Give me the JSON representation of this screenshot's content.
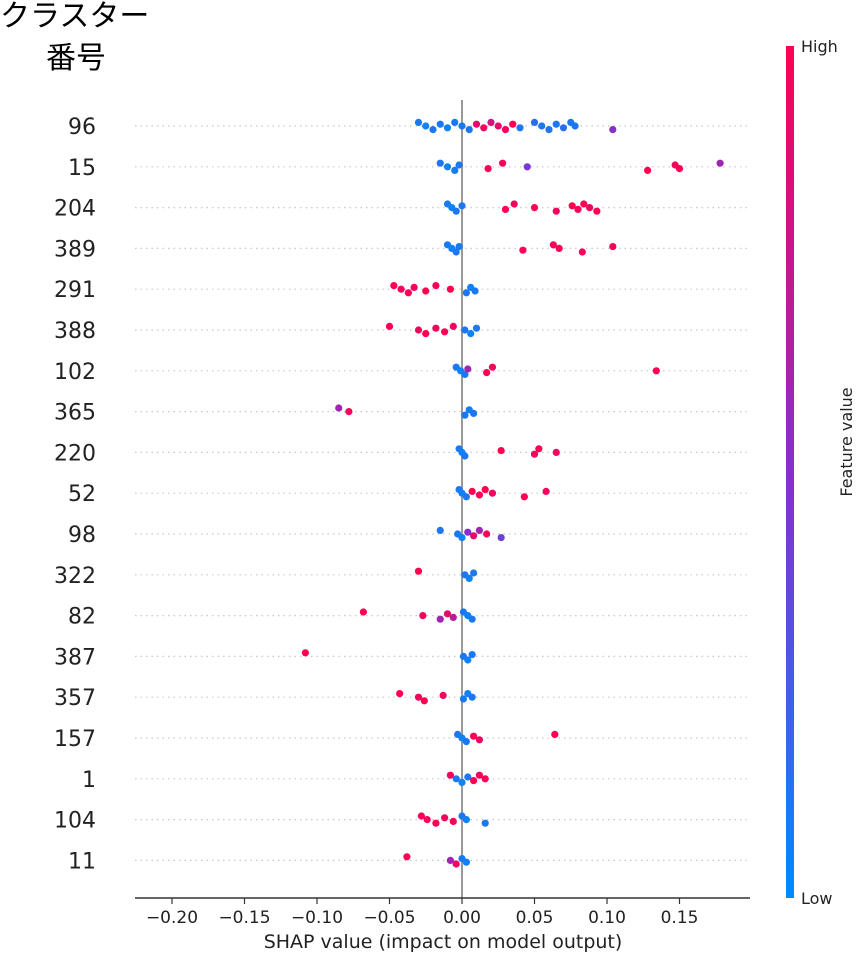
{
  "chart_data": {
    "type": "scatter",
    "subtype": "shap-beeswarm",
    "ylabel_line1": "クラスター",
    "ylabel_line2": "番号",
    "xlabel": "SHAP value (impact on model output)",
    "xlim": [
      -0.22,
      0.2
    ],
    "xticks": [
      -0.2,
      -0.15,
      -0.1,
      -0.05,
      0.0,
      0.05,
      0.1,
      0.15
    ],
    "xtick_labels": [
      "−0.20",
      "−0.15",
      "−0.10",
      "−0.05",
      "0.00",
      "0.05",
      "0.10",
      "0.15"
    ],
    "colorbar": {
      "label": "Feature value",
      "high": "High",
      "low": "Low",
      "high_color": "#ff0052",
      "low_color": "#008bfb"
    },
    "grid": "dotted-horizontal",
    "features": [
      {
        "name": "96",
        "points": [
          [
            -0.03,
            0.1
          ],
          [
            -0.025,
            0.05
          ],
          [
            -0.02,
            0.1
          ],
          [
            -0.015,
            0.1
          ],
          [
            -0.01,
            0.05
          ],
          [
            -0.005,
            0.1
          ],
          [
            0.0,
            0.1
          ],
          [
            0.005,
            0.1
          ],
          [
            0.01,
            0.9
          ],
          [
            0.015,
            0.95
          ],
          [
            0.02,
            0.8
          ],
          [
            0.025,
            0.9
          ],
          [
            0.03,
            0.95
          ],
          [
            0.035,
            1.0
          ],
          [
            0.04,
            0.1
          ],
          [
            0.05,
            0.15
          ],
          [
            0.055,
            0.1
          ],
          [
            0.06,
            0.1
          ],
          [
            0.065,
            0.1
          ],
          [
            0.07,
            0.15
          ],
          [
            0.075,
            0.1
          ],
          [
            0.078,
            0.1
          ],
          [
            0.104,
            0.5
          ]
        ]
      },
      {
        "name": "15",
        "points": [
          [
            -0.015,
            0.1
          ],
          [
            -0.01,
            0.05
          ],
          [
            -0.005,
            0.1
          ],
          [
            -0.002,
            0.1
          ],
          [
            0.018,
            1.0
          ],
          [
            0.028,
            0.95
          ],
          [
            0.045,
            0.45
          ],
          [
            0.128,
            1.0
          ],
          [
            0.147,
            0.95
          ],
          [
            0.15,
            1.0
          ],
          [
            0.178,
            0.6
          ]
        ]
      },
      {
        "name": "204",
        "points": [
          [
            -0.01,
            0.1
          ],
          [
            -0.007,
            0.05
          ],
          [
            -0.004,
            0.1
          ],
          [
            0.0,
            0.1
          ],
          [
            0.03,
            1.0
          ],
          [
            0.036,
            0.95
          ],
          [
            0.05,
            1.0
          ],
          [
            0.065,
            0.95
          ],
          [
            0.076,
            1.0
          ],
          [
            0.08,
            0.95
          ],
          [
            0.084,
            1.0
          ],
          [
            0.088,
            0.95
          ],
          [
            0.093,
            1.0
          ]
        ]
      },
      {
        "name": "389",
        "points": [
          [
            -0.01,
            0.1
          ],
          [
            -0.007,
            0.05
          ],
          [
            -0.004,
            0.1
          ],
          [
            -0.002,
            0.1
          ],
          [
            0.042,
            1.0
          ],
          [
            0.063,
            0.95
          ],
          [
            0.067,
            1.0
          ],
          [
            0.083,
            0.95
          ],
          [
            0.104,
            1.0
          ]
        ]
      },
      {
        "name": "291",
        "points": [
          [
            -0.047,
            1.0
          ],
          [
            -0.042,
            0.95
          ],
          [
            -0.037,
            1.0
          ],
          [
            -0.033,
            0.95
          ],
          [
            -0.025,
            1.0
          ],
          [
            -0.018,
            0.95
          ],
          [
            -0.008,
            1.0
          ],
          [
            0.003,
            0.1
          ],
          [
            0.006,
            0.05
          ],
          [
            0.009,
            0.1
          ]
        ]
      },
      {
        "name": "388",
        "points": [
          [
            -0.05,
            1.0
          ],
          [
            -0.03,
            0.95
          ],
          [
            -0.025,
            1.0
          ],
          [
            -0.018,
            0.95
          ],
          [
            -0.012,
            1.0
          ],
          [
            -0.006,
            0.95
          ],
          [
            0.002,
            0.1
          ],
          [
            0.006,
            0.05
          ],
          [
            0.01,
            0.1
          ]
        ]
      },
      {
        "name": "102",
        "points": [
          [
            -0.004,
            0.1
          ],
          [
            -0.001,
            0.05
          ],
          [
            0.002,
            0.1
          ],
          [
            0.004,
            0.6
          ],
          [
            0.017,
            1.0
          ],
          [
            0.021,
            0.95
          ],
          [
            0.134,
            1.0
          ]
        ]
      },
      {
        "name": "365",
        "points": [
          [
            -0.085,
            0.6
          ],
          [
            -0.078,
            0.95
          ],
          [
            0.002,
            0.1
          ],
          [
            0.005,
            0.05
          ],
          [
            0.008,
            0.1
          ]
        ]
      },
      {
        "name": "220",
        "points": [
          [
            -0.002,
            0.1
          ],
          [
            0.0,
            0.05
          ],
          [
            0.002,
            0.1
          ],
          [
            0.027,
            1.0
          ],
          [
            0.05,
            0.95
          ],
          [
            0.053,
            1.0
          ],
          [
            0.065,
            0.95
          ]
        ]
      },
      {
        "name": "52",
        "points": [
          [
            -0.002,
            0.1
          ],
          [
            0.0,
            0.05
          ],
          [
            0.003,
            0.1
          ],
          [
            0.007,
            1.0
          ],
          [
            0.012,
            0.95
          ],
          [
            0.016,
            1.0
          ],
          [
            0.021,
            0.95
          ],
          [
            0.043,
            1.0
          ],
          [
            0.058,
            0.95
          ]
        ]
      },
      {
        "name": "98",
        "points": [
          [
            -0.015,
            0.1
          ],
          [
            -0.003,
            0.1
          ],
          [
            0.0,
            0.05
          ],
          [
            0.004,
            0.5
          ],
          [
            0.008,
            0.9
          ],
          [
            0.012,
            0.6
          ],
          [
            0.017,
            0.95
          ],
          [
            0.027,
            0.4
          ]
        ]
      },
      {
        "name": "322",
        "points": [
          [
            -0.03,
            1.0
          ],
          [
            0.002,
            0.1
          ],
          [
            0.005,
            0.05
          ],
          [
            0.008,
            0.1
          ]
        ]
      },
      {
        "name": "82",
        "points": [
          [
            -0.068,
            1.0
          ],
          [
            -0.027,
            0.95
          ],
          [
            -0.015,
            0.6
          ],
          [
            -0.01,
            0.9
          ],
          [
            -0.006,
            0.7
          ],
          [
            0.001,
            0.1
          ],
          [
            0.004,
            0.05
          ],
          [
            0.007,
            0.1
          ]
        ]
      },
      {
        "name": "387",
        "points": [
          [
            -0.108,
            1.0
          ],
          [
            0.001,
            0.1
          ],
          [
            0.004,
            0.05
          ],
          [
            0.007,
            0.1
          ]
        ]
      },
      {
        "name": "357",
        "points": [
          [
            -0.043,
            1.0
          ],
          [
            -0.03,
            0.95
          ],
          [
            -0.026,
            1.0
          ],
          [
            -0.013,
            0.95
          ],
          [
            0.001,
            0.1
          ],
          [
            0.004,
            0.05
          ],
          [
            0.007,
            0.1
          ]
        ]
      },
      {
        "name": "157",
        "points": [
          [
            -0.003,
            0.1
          ],
          [
            0.0,
            0.05
          ],
          [
            0.003,
            0.1
          ],
          [
            0.008,
            1.0
          ],
          [
            0.012,
            0.95
          ],
          [
            0.064,
            1.0
          ]
        ]
      },
      {
        "name": "1",
        "points": [
          [
            -0.008,
            0.95
          ],
          [
            -0.004,
            0.1
          ],
          [
            0.0,
            0.05
          ],
          [
            0.004,
            0.1
          ],
          [
            0.008,
            1.0
          ],
          [
            0.012,
            0.95
          ],
          [
            0.016,
            1.0
          ]
        ]
      },
      {
        "name": "104",
        "points": [
          [
            -0.028,
            1.0
          ],
          [
            -0.024,
            0.95
          ],
          [
            -0.018,
            1.0
          ],
          [
            -0.012,
            0.95
          ],
          [
            -0.006,
            1.0
          ],
          [
            0.0,
            0.1
          ],
          [
            0.003,
            0.05
          ],
          [
            0.016,
            0.1
          ]
        ]
      },
      {
        "name": "11",
        "points": [
          [
            -0.038,
            1.0
          ],
          [
            -0.008,
            0.6
          ],
          [
            -0.004,
            0.95
          ],
          [
            0.0,
            0.1
          ],
          [
            0.003,
            0.05
          ]
        ]
      }
    ]
  }
}
